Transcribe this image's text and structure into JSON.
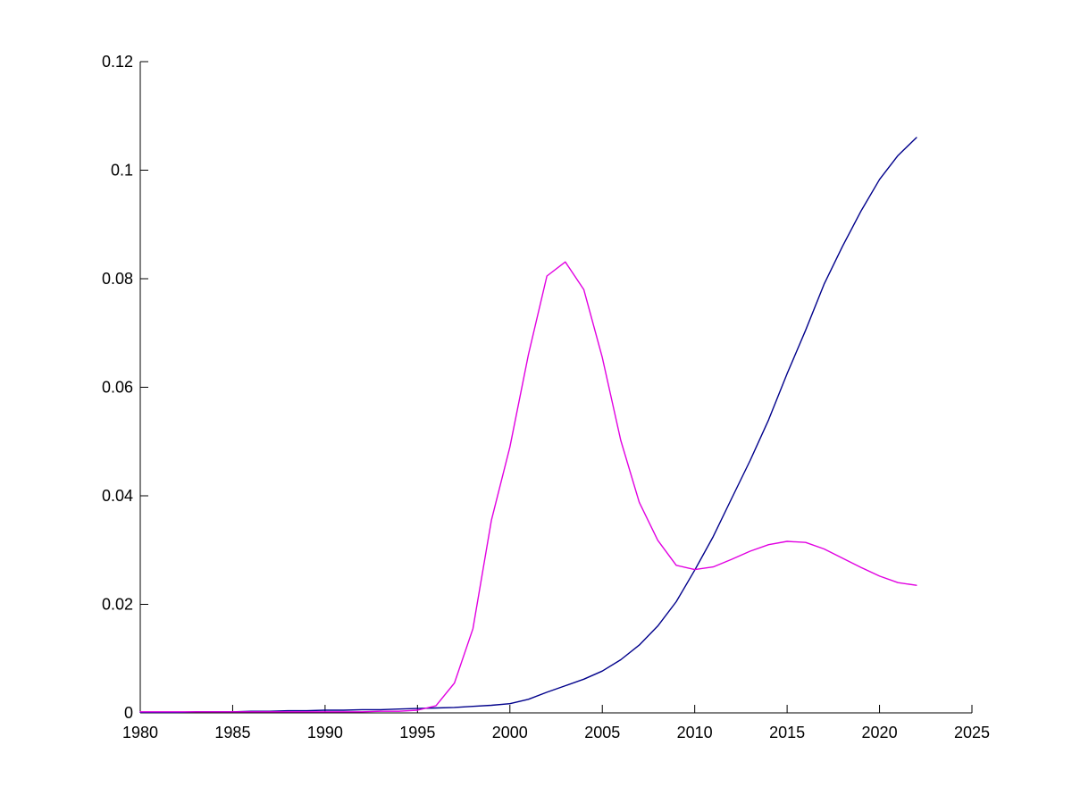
{
  "figure": {
    "background_color": "#ffffff",
    "axis_color": "#000000"
  },
  "chart_data": {
    "type": "line",
    "title": "",
    "xlabel": "",
    "ylabel": "",
    "grid": false,
    "legend": "none",
    "xlim": [
      1980,
      2025
    ],
    "ylim": [
      0,
      0.12
    ],
    "x_ticks": [
      1980,
      1985,
      1990,
      1995,
      2000,
      2005,
      2010,
      2015,
      2020,
      2025
    ],
    "x_tick_labels": [
      "1980",
      "1985",
      "1990",
      "1995",
      "2000",
      "2005",
      "2010",
      "2015",
      "2020",
      "2025"
    ],
    "y_ticks": [
      0,
      0.02,
      0.04,
      0.06,
      0.08,
      0.1,
      0.12
    ],
    "y_tick_labels": [
      "0",
      "0.02",
      "0.04",
      "0.06",
      "0.08",
      "0.1",
      "0.12"
    ],
    "x": [
      1980,
      1981,
      1982,
      1983,
      1984,
      1985,
      1986,
      1987,
      1988,
      1989,
      1990,
      1991,
      1992,
      1993,
      1994,
      1995,
      1996,
      1997,
      1998,
      1999,
      2000,
      2001,
      2002,
      2003,
      2004,
      2005,
      2006,
      2007,
      2008,
      2009,
      2010,
      2011,
      2012,
      2013,
      2014,
      2015,
      2016,
      2017,
      2018,
      2019,
      2020,
      2021,
      2022
    ],
    "series": [
      {
        "name": "dark-blue-line",
        "color": "#00008B",
        "values": [
          0.0001,
          0.0001,
          0.0001,
          0.0002,
          0.0002,
          0.0002,
          0.0003,
          0.0003,
          0.0004,
          0.0004,
          0.0005,
          0.0005,
          0.0006,
          0.0006,
          0.0007,
          0.0008,
          0.0009,
          0.001,
          0.0012,
          0.0014,
          0.0017,
          0.0025,
          0.0038,
          0.005,
          0.0062,
          0.0077,
          0.0098,
          0.0125,
          0.016,
          0.0205,
          0.0263,
          0.0325,
          0.0395,
          0.0465,
          0.054,
          0.0625,
          0.0705,
          0.079,
          0.086,
          0.0925,
          0.0983,
          0.1027,
          0.106
        ]
      },
      {
        "name": "magenta-line",
        "color": "#E100E1",
        "values": [
          0.0002,
          0.0002,
          0.0002,
          0.0002,
          0.0002,
          0.0002,
          0.0002,
          0.0002,
          0.0002,
          0.0002,
          0.0002,
          0.0002,
          0.0002,
          0.0003,
          0.0003,
          0.0005,
          0.0013,
          0.0055,
          0.0155,
          0.0355,
          0.049,
          0.066,
          0.0805,
          0.0831,
          0.078,
          0.0655,
          0.0502,
          0.0388,
          0.0318,
          0.0272,
          0.0264,
          0.0269,
          0.0283,
          0.0298,
          0.031,
          0.0316,
          0.0314,
          0.0302,
          0.0285,
          0.0268,
          0.0252,
          0.024,
          0.0235
        ]
      }
    ]
  }
}
